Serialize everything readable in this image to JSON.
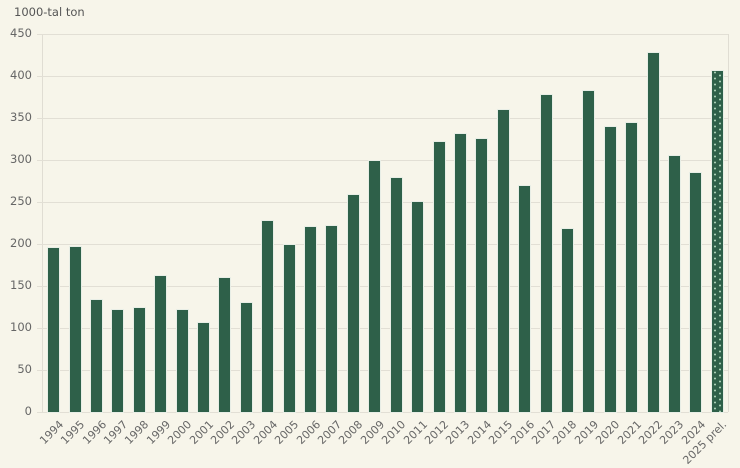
{
  "chart_data": {
    "type": "bar",
    "title": "",
    "ylabel": "1000-tal ton",
    "xlabel": "",
    "ylim": [
      0,
      450
    ],
    "yticks": [
      0,
      50,
      100,
      150,
      200,
      250,
      300,
      350,
      400,
      450
    ],
    "grid": true,
    "legend": null,
    "categories": [
      "1994",
      "1995",
      "1996",
      "1997",
      "1998",
      "1999",
      "2000",
      "2001",
      "2002",
      "2003",
      "2004",
      "2005",
      "2006",
      "2007",
      "2008",
      "2009",
      "2010",
      "2011",
      "2012",
      "2013",
      "2014",
      "2015",
      "2016",
      "2017",
      "2018",
      "2019",
      "2020",
      "2021",
      "2022",
      "2023",
      "2024",
      "2025 prel."
    ],
    "values": [
      195,
      196,
      133,
      121,
      124,
      162,
      121,
      106,
      159,
      130,
      227,
      199,
      220,
      222,
      258,
      299,
      279,
      250,
      321,
      331,
      325,
      360,
      269,
      377,
      218,
      382,
      339,
      344,
      427,
      305,
      285,
      406
    ],
    "preliminary_categories": [
      "2025 prel."
    ],
    "colors": {
      "bar": "#2e6049",
      "preliminary_pattern": "#a8cfb4",
      "background": "#f7f5ea",
      "grid": "#e2dfd5"
    }
  }
}
